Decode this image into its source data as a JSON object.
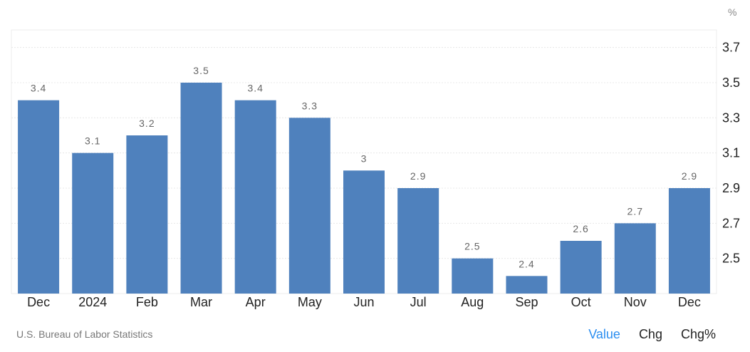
{
  "chart_data": {
    "type": "bar",
    "categories": [
      "Dec",
      "2024",
      "Feb",
      "Mar",
      "Apr",
      "May",
      "Jun",
      "Jul",
      "Aug",
      "Sep",
      "Oct",
      "Nov",
      "Dec"
    ],
    "values": [
      3.4,
      3.1,
      3.2,
      3.5,
      3.4,
      3.3,
      3.0,
      2.9,
      2.5,
      2.4,
      2.6,
      2.7,
      2.9
    ],
    "data_labels": [
      "3.4",
      "3.1",
      "3.2",
      "3.5",
      "3.4",
      "3.3",
      "3",
      "2.9",
      "2.5",
      "2.4",
      "2.6",
      "2.7",
      "2.9"
    ],
    "yticks": [
      2.5,
      2.7,
      2.9,
      3.1,
      3.3,
      3.5,
      3.7
    ],
    "ytick_labels": [
      "2.5",
      "2.7",
      "2.9",
      "3.1",
      "3.3",
      "3.5",
      "3.7"
    ],
    "ylim": [
      2.3,
      3.8
    ],
    "y_unit": "%",
    "y_axis_position": "right",
    "grid": true,
    "bar_color": "#4f81bd"
  },
  "footer": {
    "source": "U.S. Bureau of Labor Statistics",
    "tabs": [
      {
        "label": "Value",
        "active": true
      },
      {
        "label": "Chg",
        "active": false
      },
      {
        "label": "Chg%",
        "active": false
      }
    ],
    "active_color": "#2b8ef0"
  }
}
